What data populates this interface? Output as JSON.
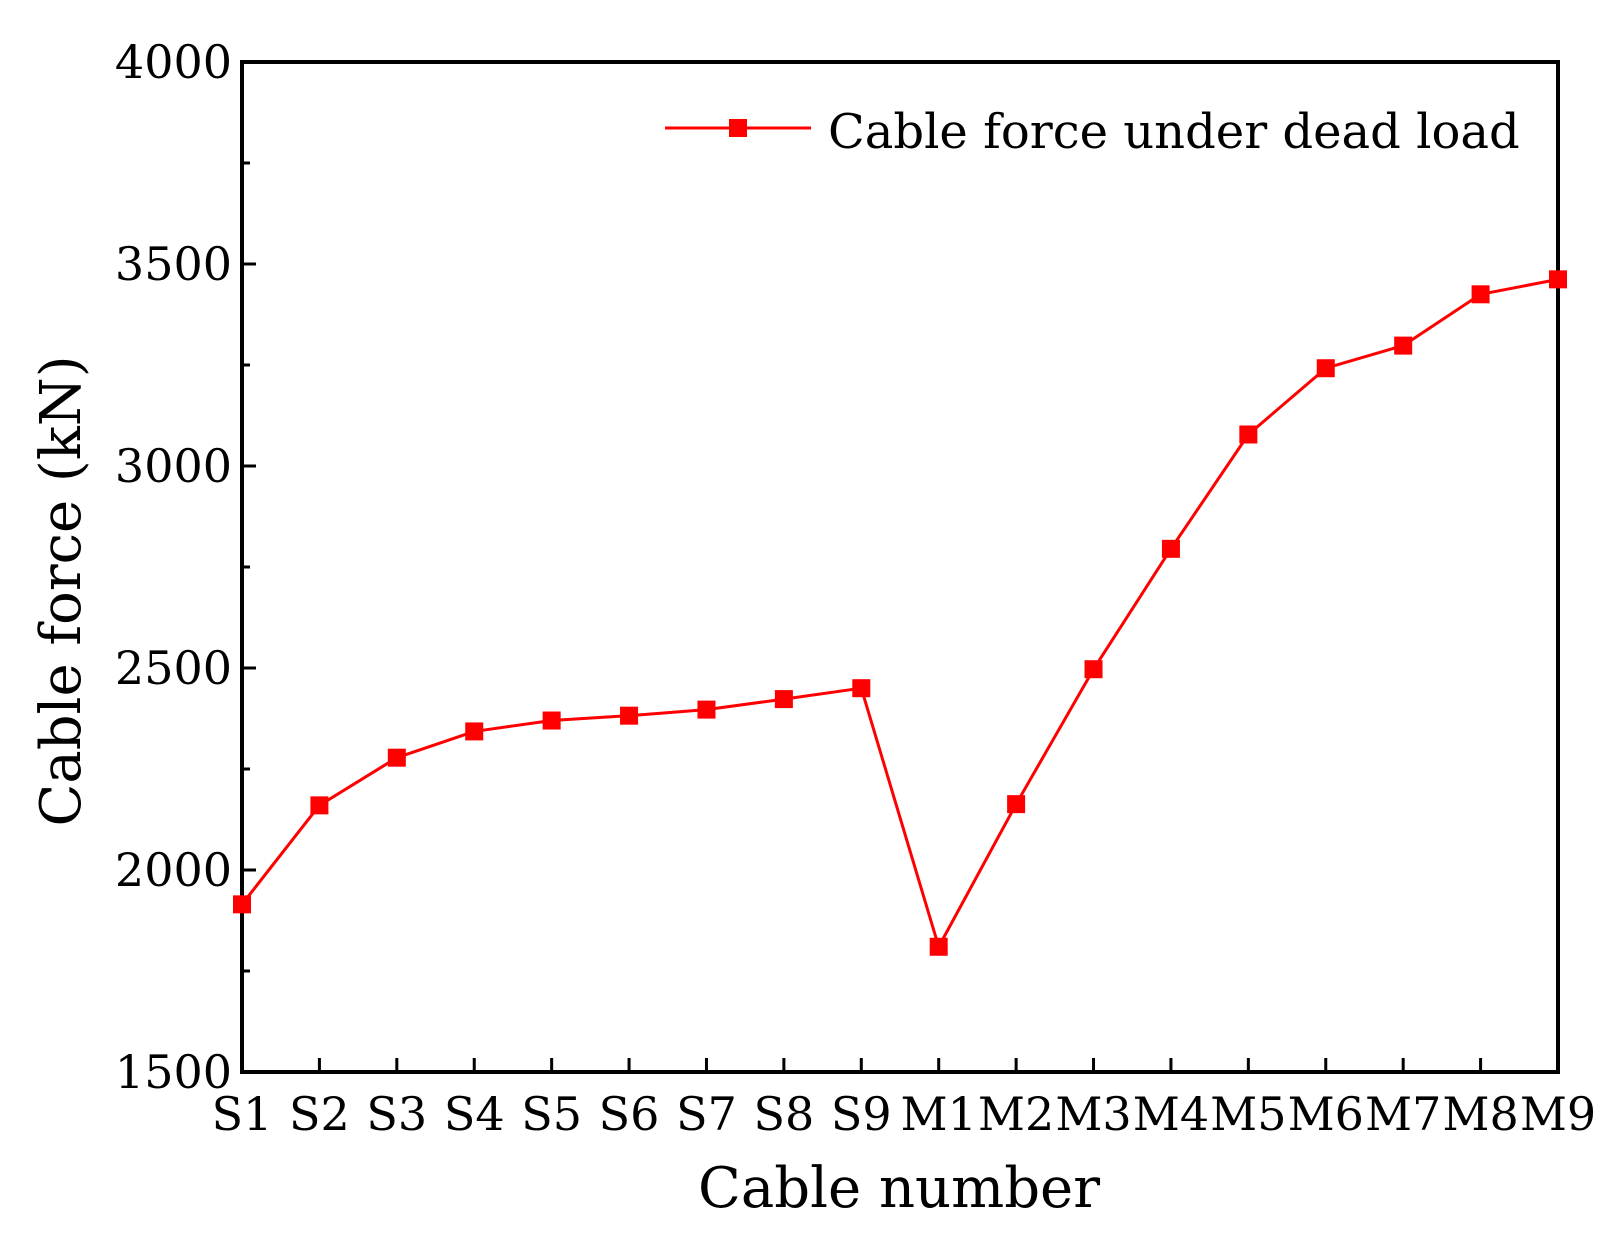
{
  "chart_data": {
    "type": "line",
    "xlabel": "Cable number",
    "ylabel": "Cable force (kN)",
    "ylim": [
      1500,
      4000
    ],
    "yticks": [
      1500,
      2000,
      2500,
      3000,
      3500,
      4000
    ],
    "categories": [
      "S1",
      "S2",
      "S3",
      "S4",
      "S5",
      "S6",
      "S7",
      "S8",
      "S9",
      "M1",
      "M2",
      "M3",
      "M4",
      "M5",
      "M6",
      "M7",
      "M8",
      "M9"
    ],
    "series": [
      {
        "name": "Cable force under dead load",
        "color": "#ff0000",
        "marker": "square",
        "values": [
          1915,
          2160,
          2278,
          2343,
          2370,
          2382,
          2397,
          2423,
          2450,
          1810,
          2163,
          2497,
          2795,
          3078,
          3242,
          3298,
          3425,
          3462
        ]
      }
    ],
    "legend_position": "top-right",
    "grid": false
  }
}
